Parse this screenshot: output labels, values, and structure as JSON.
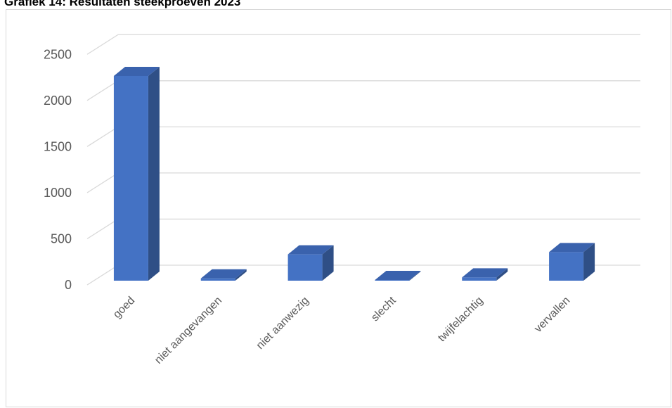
{
  "chart_data": {
    "type": "bar",
    "title": "Grafiek 14: Resultaten steekproeven 2023",
    "categories": [
      "goed",
      "niet aangevangen",
      "niet aanwezig",
      "slecht",
      "twijfelachtig",
      "vervallen"
    ],
    "values": [
      2220,
      25,
      285,
      8,
      35,
      310
    ],
    "ylim": [
      0,
      2500
    ],
    "yticks": [
      0,
      500,
      1000,
      1500,
      2000,
      2500
    ],
    "xlabel": "",
    "ylabel": "",
    "grid": true,
    "legend": "none",
    "style": "3d-column",
    "colors": {
      "front": "#4472c4",
      "side": "#2f4f86",
      "top": "#3a62ad",
      "grid": "#d9d9d9",
      "text": "#595959"
    }
  }
}
